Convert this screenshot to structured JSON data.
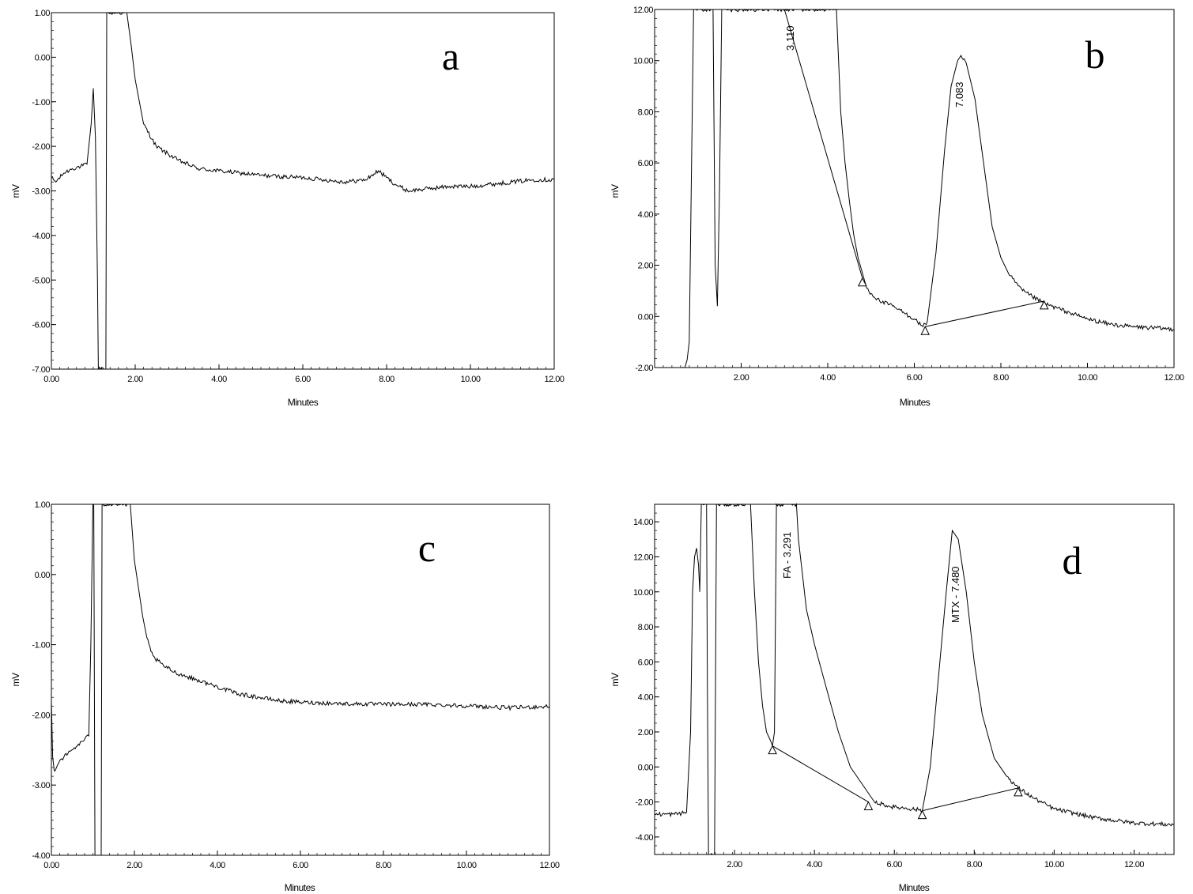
{
  "chart_data": [
    {
      "id": "a",
      "type": "line",
      "panel_label": "a",
      "xlabel": "Minutes",
      "ylabel": "mV",
      "xlim": [
        0,
        12
      ],
      "ylim": [
        -7,
        1
      ],
      "xticks": [
        0,
        2,
        4,
        6,
        8,
        10,
        12
      ],
      "xtick_labels": [
        "0.00",
        "2.00",
        "4.00",
        "6.00",
        "8.00",
        "10.00",
        "12.00"
      ],
      "yticks": [
        -7,
        -6,
        -5,
        -4,
        -3,
        -2,
        -1,
        0,
        1
      ],
      "ytick_labels": [
        "-7.00",
        "-6.00",
        "-5.00",
        "-4.00",
        "-3.00",
        "-2.00",
        "-1.00",
        "0.00",
        "1.00"
      ],
      "series": [
        {
          "x": [
            0,
            0.1,
            0.3,
            0.5,
            0.7,
            0.85,
            0.95,
            1.0,
            1.05,
            1.1,
            1.12,
            1.3,
            1.32,
            1.8,
            1.9,
            2.0,
            2.2,
            2.5,
            3.0,
            3.5,
            4.0,
            4.5,
            5.0,
            5.5,
            6.0,
            6.5,
            7.0,
            7.5,
            7.8,
            8.0,
            8.2,
            8.5,
            9.0,
            9.5,
            10.0,
            10.5,
            11.0,
            11.5,
            12.0
          ],
          "y": [
            -2.7,
            -2.8,
            -2.6,
            -2.5,
            -2.45,
            -2.4,
            -1.5,
            -0.7,
            -1.8,
            -5.0,
            -7.0,
            -7.0,
            1.0,
            1.0,
            0.3,
            -0.5,
            -1.5,
            -2.0,
            -2.3,
            -2.5,
            -2.55,
            -2.6,
            -2.65,
            -2.68,
            -2.7,
            -2.75,
            -2.8,
            -2.75,
            -2.55,
            -2.7,
            -2.85,
            -3.0,
            -2.95,
            -2.9,
            -2.9,
            -2.85,
            -2.8,
            -2.75,
            -2.75
          ]
        }
      ]
    },
    {
      "id": "b",
      "type": "line",
      "panel_label": "b",
      "xlabel": "Minutes",
      "ylabel": "mV",
      "xlim": [
        0,
        12
      ],
      "ylim": [
        -2,
        12
      ],
      "xticks": [
        2,
        4,
        6,
        8,
        10,
        12
      ],
      "xtick_labels": [
        "2.00",
        "4.00",
        "6.00",
        "8.00",
        "10.00",
        "12.00"
      ],
      "yticks": [
        -2,
        0,
        2,
        4,
        6,
        8,
        10,
        12
      ],
      "ytick_labels": [
        "-2.00",
        "0.00",
        "2.00",
        "4.00",
        "6.00",
        "8.00",
        "10.00",
        "12.00"
      ],
      "peaks": [
        {
          "label": "3.110",
          "x": 3.11,
          "baseline": [
            [
              3.0,
              12.0
            ],
            [
              4.8,
              1.5
            ]
          ]
        },
        {
          "label": "7.083",
          "x": 7.08,
          "baseline": [
            [
              6.25,
              -0.4
            ],
            [
              9.0,
              0.6
            ]
          ]
        }
      ],
      "series": [
        {
          "x": [
            0.6,
            0.7,
            0.75,
            0.8,
            0.9,
            1.0,
            1.3,
            1.35,
            1.4,
            1.45,
            1.5,
            1.55,
            4.2,
            4.3,
            4.4,
            4.5,
            4.6,
            4.7,
            4.8,
            4.9,
            5.0,
            5.2,
            5.5,
            5.8,
            6.0,
            6.2,
            6.3,
            6.5,
            6.7,
            6.85,
            7.0,
            7.08,
            7.2,
            7.4,
            7.6,
            7.8,
            8.0,
            8.2,
            8.5,
            9.0,
            9.5,
            10.0,
            10.5,
            11.0,
            11.5,
            12.0
          ],
          "y": [
            -2.0,
            -2.0,
            -1.7,
            -1.0,
            12.0,
            12.0,
            12.0,
            12.0,
            2.0,
            0.4,
            5.0,
            12.0,
            12.0,
            8.0,
            6.0,
            4.5,
            3.2,
            2.3,
            1.7,
            1.1,
            0.9,
            0.6,
            0.4,
            0.1,
            -0.1,
            -0.4,
            -0.2,
            2.5,
            6.5,
            9.0,
            10.0,
            10.2,
            9.9,
            8.5,
            6.0,
            3.5,
            2.3,
            1.6,
            1.0,
            0.5,
            0.2,
            -0.1,
            -0.3,
            -0.4,
            -0.45,
            -0.5
          ]
        }
      ]
    },
    {
      "id": "c",
      "type": "line",
      "panel_label": "c",
      "xlabel": "Minutes",
      "ylabel": "mV",
      "xlim": [
        0,
        12
      ],
      "ylim": [
        -4,
        1
      ],
      "xticks": [
        0,
        2,
        4,
        6,
        8,
        10,
        12
      ],
      "xtick_labels": [
        "0.00",
        "2.00",
        "4.00",
        "6.00",
        "8.00",
        "10.00",
        "12.00"
      ],
      "yticks": [
        -4,
        -3,
        -2,
        -1,
        0,
        1
      ],
      "ytick_labels": [
        "-4.00",
        "-3.00",
        "-2.00",
        "-1.00",
        "0.00",
        "1.00"
      ],
      "series": [
        {
          "x": [
            0,
            0.03,
            0.07,
            0.2,
            0.4,
            0.6,
            0.8,
            0.9,
            0.95,
            1.0,
            1.02,
            1.05,
            1.07,
            1.2,
            1.22,
            1.9,
            2.0,
            2.1,
            2.2,
            2.3,
            2.4,
            2.5,
            2.7,
            3.0,
            3.5,
            4.0,
            4.5,
            5.0,
            5.5,
            6.0,
            7.0,
            8.0,
            9.0,
            10.0,
            11.0,
            12.0
          ],
          "y": [
            -1.8,
            -2.6,
            -2.8,
            -2.65,
            -2.55,
            -2.45,
            -2.35,
            -2.3,
            -1.0,
            1.0,
            1.0,
            -4.0,
            -4.0,
            -4.0,
            1.0,
            1.0,
            0.2,
            -0.2,
            -0.6,
            -0.9,
            -1.1,
            -1.2,
            -1.3,
            -1.4,
            -1.5,
            -1.6,
            -1.7,
            -1.75,
            -1.8,
            -1.82,
            -1.84,
            -1.85,
            -1.85,
            -1.87,
            -1.9,
            -1.88
          ]
        }
      ]
    },
    {
      "id": "d",
      "type": "line",
      "panel_label": "d",
      "xlabel": "Minutes",
      "ylabel": "mV",
      "xlim": [
        0,
        13
      ],
      "ylim": [
        -5,
        15
      ],
      "xticks": [
        2,
        4,
        6,
        8,
        10,
        12
      ],
      "xtick_labels": [
        "2.00",
        "4.00",
        "6.00",
        "8.00",
        "10.00",
        "12.00"
      ],
      "yticks": [
        -4,
        -2,
        0,
        2,
        4,
        6,
        8,
        10,
        12,
        14
      ],
      "ytick_labels": [
        "-4.00",
        "-2.00",
        "0.00",
        "2.00",
        "4.00",
        "6.00",
        "8.00",
        "10.00",
        "12.00",
        "14.00"
      ],
      "peaks": [
        {
          "label": "FA - 3.291",
          "x": 3.29,
          "baseline": [
            [
              2.95,
              1.2
            ],
            [
              5.35,
              -2.0
            ]
          ]
        },
        {
          "label": "MTX - 7.480",
          "x": 7.48,
          "baseline": [
            [
              6.7,
              -2.5
            ],
            [
              9.1,
              -1.2
            ]
          ]
        }
      ],
      "series": [
        {
          "x": [
            0,
            0.5,
            0.8,
            0.9,
            0.95,
            1.0,
            1.05,
            1.1,
            1.13,
            1.17,
            1.2,
            1.3,
            1.32,
            1.35,
            1.4,
            1.45,
            1.5,
            1.55,
            2.4,
            2.5,
            2.6,
            2.7,
            2.8,
            2.9,
            2.95,
            3.0,
            3.05,
            3.55,
            3.6,
            3.7,
            3.8,
            4.0,
            4.3,
            4.6,
            4.9,
            5.2,
            5.5,
            5.8,
            6.0,
            6.3,
            6.6,
            6.7,
            6.9,
            7.1,
            7.3,
            7.45,
            7.6,
            7.8,
            8.0,
            8.2,
            8.5,
            8.8,
            9.1,
            9.5,
            10.0,
            11.0,
            12.0,
            13.0
          ],
          "y": [
            -2.7,
            -2.7,
            -2.6,
            2.0,
            10.0,
            12.0,
            12.5,
            11.5,
            10.0,
            15.0,
            15.0,
            15.0,
            5.0,
            -5.0,
            -5.0,
            -5.0,
            -5.0,
            15.0,
            15.0,
            10.0,
            6.0,
            3.5,
            2.0,
            1.5,
            1.2,
            2.0,
            15.0,
            15.0,
            13.0,
            11.0,
            9.0,
            7.0,
            4.5,
            2.0,
            0.0,
            -1.0,
            -2.0,
            -2.2,
            -2.3,
            -2.35,
            -2.45,
            -2.5,
            0.0,
            5.0,
            10.0,
            13.5,
            13.0,
            10.0,
            6.0,
            3.0,
            0.5,
            -0.5,
            -1.2,
            -1.8,
            -2.4,
            -2.9,
            -3.2,
            -3.3
          ]
        }
      ]
    }
  ]
}
